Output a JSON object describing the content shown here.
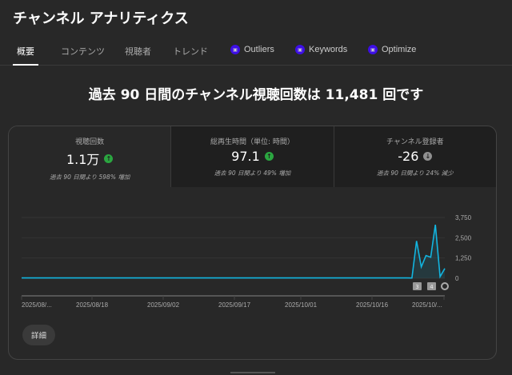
{
  "title": "チャンネル アナリティクス",
  "tabs": [
    {
      "label": "概要",
      "active": true
    },
    {
      "label": "コンテンツ"
    },
    {
      "label": "視聴者"
    },
    {
      "label": "トレンド"
    },
    {
      "label": "Outliers",
      "badge": true
    },
    {
      "label": "Keywords",
      "badge": true
    },
    {
      "label": "Optimize",
      "badge": true
    }
  ],
  "headline": "過去 90 日間のチャンネル視聴回数は 11,481 回です",
  "metrics": [
    {
      "label": "視聴回数",
      "value": "1.1万",
      "trend": "up",
      "sub": "過去 90 日間より 598% 増加"
    },
    {
      "label": "総再生時間（単位: 時間）",
      "value": "97.1",
      "trend": "up",
      "sub": "過去 90 日間より 49% 増加"
    },
    {
      "label": "チャンネル登録者",
      "value": "-26",
      "trend": "down",
      "sub": "過去 90 日間より 24% 減少"
    }
  ],
  "colors": {
    "line": "#12b5e0",
    "up": "#2ba640",
    "down": "#909090",
    "badge": "#3d0ee6"
  },
  "details_button": "詳細",
  "markers": [
    "3",
    "4"
  ],
  "chart_data": {
    "type": "line",
    "x_tick_labels": [
      "2025/08/...",
      "2025/08/18",
      "2025/09/02",
      "2025/09/17",
      "2025/10/01",
      "2025/10/16",
      "2025/10/..."
    ],
    "y_tick_labels": [
      "3,750",
      "2,500",
      "1,250",
      "0"
    ],
    "ylim": [
      0,
      3750
    ],
    "grid": true,
    "series": [
      {
        "values": [
          20,
          22,
          18,
          25,
          20,
          19,
          21,
          23,
          20,
          18,
          22,
          24,
          20,
          19,
          21,
          22,
          20,
          18,
          23,
          21,
          20,
          19,
          22,
          24,
          21,
          20,
          18,
          22,
          21,
          20,
          23,
          19,
          20,
          22,
          21,
          18,
          20,
          24,
          22,
          20,
          19,
          21,
          23,
          20,
          18,
          22,
          20,
          21,
          19,
          22,
          20,
          24,
          21,
          19,
          20,
          22,
          18,
          21,
          23,
          20,
          19,
          22,
          20,
          21,
          18,
          20,
          22,
          24,
          20,
          19,
          21,
          20,
          18,
          22,
          21,
          20,
          19,
          23,
          20,
          21,
          18,
          22,
          20,
          15,
          2300,
          700,
          1400,
          1300,
          3300,
          100,
          600
        ]
      }
    ]
  }
}
